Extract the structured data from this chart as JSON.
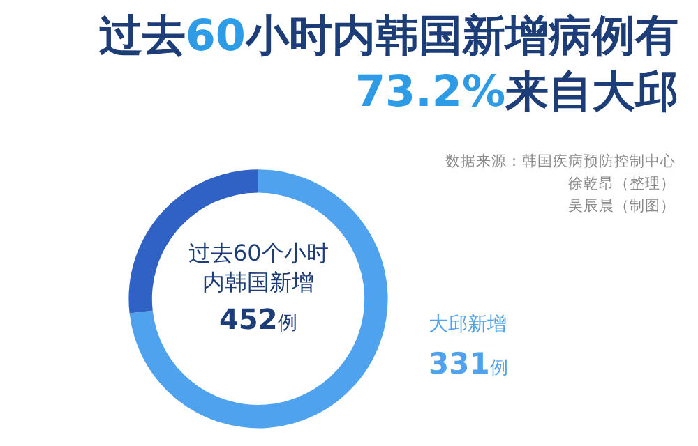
{
  "chart_data": {
    "type": "donut",
    "title": "过去60小时内韩国新增病例有73.2%来自大邱",
    "categories": [
      "大邱新增",
      null
    ],
    "values": [
      331,
      121
    ],
    "colors": [
      "#4fa3ee",
      "#2f62c4"
    ],
    "value_labels": [
      "331例",
      null
    ],
    "annotations": [
      "过去60个小时内韩国新增",
      "452例",
      "数据来源：韩国疾病预防控制中心",
      "徐乾昂（整理）",
      "吴辰晨（制图）"
    ],
    "legend": false
  }
}
